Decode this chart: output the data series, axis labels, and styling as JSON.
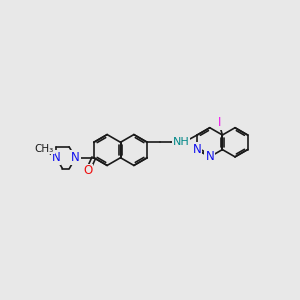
{
  "bg_color": "#e8e8e8",
  "bond_color": "#1a1a1a",
  "bond_width": 1.2,
  "atom_colors": {
    "N": "#1010ee",
    "O": "#ee1010",
    "I": "#ee10ee",
    "NH": "#008888",
    "C": "#1a1a1a"
  },
  "layout": {
    "xlim": [
      0,
      14
    ],
    "ylim": [
      2,
      9
    ],
    "figsize": [
      3.0,
      3.0
    ],
    "dpi": 100
  }
}
